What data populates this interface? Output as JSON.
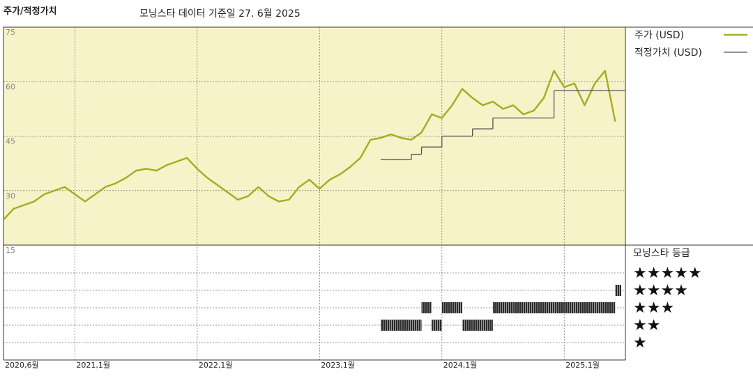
{
  "chart_data": [
    {
      "type": "line",
      "title": "주가/적정가치",
      "subtitle": "모닝스타 데이터 기준일 27. 6월 2025",
      "x": [
        "2020-06",
        "2020-07",
        "2020-08",
        "2020-09",
        "2020-10",
        "2020-11",
        "2020-12",
        "2021-01",
        "2021-02",
        "2021-03",
        "2021-04",
        "2021-05",
        "2021-06",
        "2021-07",
        "2021-08",
        "2021-09",
        "2021-10",
        "2021-11",
        "2021-12",
        "2022-01",
        "2022-02",
        "2022-03",
        "2022-04",
        "2022-05",
        "2022-06",
        "2022-07",
        "2022-08",
        "2022-09",
        "2022-10",
        "2022-11",
        "2022-12",
        "2023-01",
        "2023-02",
        "2023-03",
        "2023-04",
        "2023-05",
        "2023-06",
        "2023-07",
        "2023-08",
        "2023-09",
        "2023-10",
        "2023-11",
        "2023-12",
        "2024-01",
        "2024-02",
        "2024-03",
        "2024-04",
        "2024-05",
        "2024-06",
        "2024-07",
        "2024-08",
        "2024-09",
        "2024-10",
        "2024-11",
        "2024-12",
        "2025-01",
        "2025-02",
        "2025-03",
        "2025-04",
        "2025-05",
        "2025-06"
      ],
      "xlim": [
        "2020-06",
        "2025-07"
      ],
      "xticks": [
        {
          "value": "2020-06",
          "label": "2020,6월"
        },
        {
          "value": "2021-01",
          "label": "2021,1월"
        },
        {
          "value": "2022-01",
          "label": "2022,1월"
        },
        {
          "value": "2023-01",
          "label": "2023,1월"
        },
        {
          "value": "2024-01",
          "label": "2024,1월"
        },
        {
          "value": "2025-01",
          "label": "2025,1월"
        }
      ],
      "ylim": [
        15,
        75
      ],
      "yticks": [
        15,
        30,
        45,
        60,
        75
      ],
      "grid": true,
      "background": "#f7f3c9",
      "series": [
        {
          "name": "주가 (USD)",
          "color": "#a7ad25",
          "values": [
            22,
            25,
            26,
            27,
            29,
            30,
            31,
            29,
            27,
            29,
            31,
            32,
            33.5,
            35.5,
            36,
            35.5,
            37,
            38,
            39,
            36,
            33.5,
            31.5,
            29.5,
            27.5,
            28.5,
            31,
            28.5,
            27,
            27.5,
            31,
            33,
            30.5,
            33,
            34.5,
            36.5,
            39,
            44,
            44.5,
            45.5,
            44.5,
            44,
            46,
            51,
            50,
            53.5,
            58,
            55.5,
            53.5,
            54.5,
            52.5,
            53.5,
            51,
            52,
            55.5,
            63,
            58.5,
            59.5,
            53.5,
            59.5,
            63,
            49
          ]
        },
        {
          "name": "적정가치 (USD)",
          "color": "#555555",
          "step": true,
          "values": [
            null,
            null,
            null,
            null,
            null,
            null,
            null,
            null,
            null,
            null,
            null,
            null,
            null,
            null,
            null,
            null,
            null,
            null,
            null,
            null,
            null,
            null,
            null,
            null,
            null,
            null,
            null,
            null,
            null,
            null,
            null,
            null,
            null,
            null,
            null,
            null,
            null,
            38.5,
            38.5,
            38.5,
            40,
            42,
            42,
            45,
            45,
            45,
            47,
            47,
            50,
            50,
            50,
            50,
            50,
            50,
            57.5,
            57.5,
            57.5,
            57.5,
            57.5,
            57.5,
            57.5
          ]
        }
      ]
    },
    {
      "type": "rating",
      "title": "모닝스타 등급",
      "ylim": [
        0,
        6.6
      ],
      "yticks": [
        {
          "value": 1,
          "label": "★"
        },
        {
          "value": 2,
          "label": "★★"
        },
        {
          "value": 3,
          "label": "★★★"
        },
        {
          "value": 4,
          "label": "★★★★"
        },
        {
          "value": 5,
          "label": "★★★★★"
        }
      ],
      "color": "#2a2a2a",
      "values": [
        null,
        null,
        null,
        null,
        null,
        null,
        null,
        null,
        null,
        null,
        null,
        null,
        null,
        null,
        null,
        null,
        null,
        null,
        null,
        null,
        null,
        null,
        null,
        null,
        null,
        null,
        null,
        null,
        null,
        null,
        null,
        null,
        null,
        null,
        null,
        null,
        null,
        2,
        2,
        2,
        2,
        3,
        2,
        3,
        3,
        2,
        2,
        2,
        3,
        3,
        3,
        3,
        3,
        3,
        3,
        3,
        3,
        3,
        3,
        3,
        4
      ]
    }
  ]
}
